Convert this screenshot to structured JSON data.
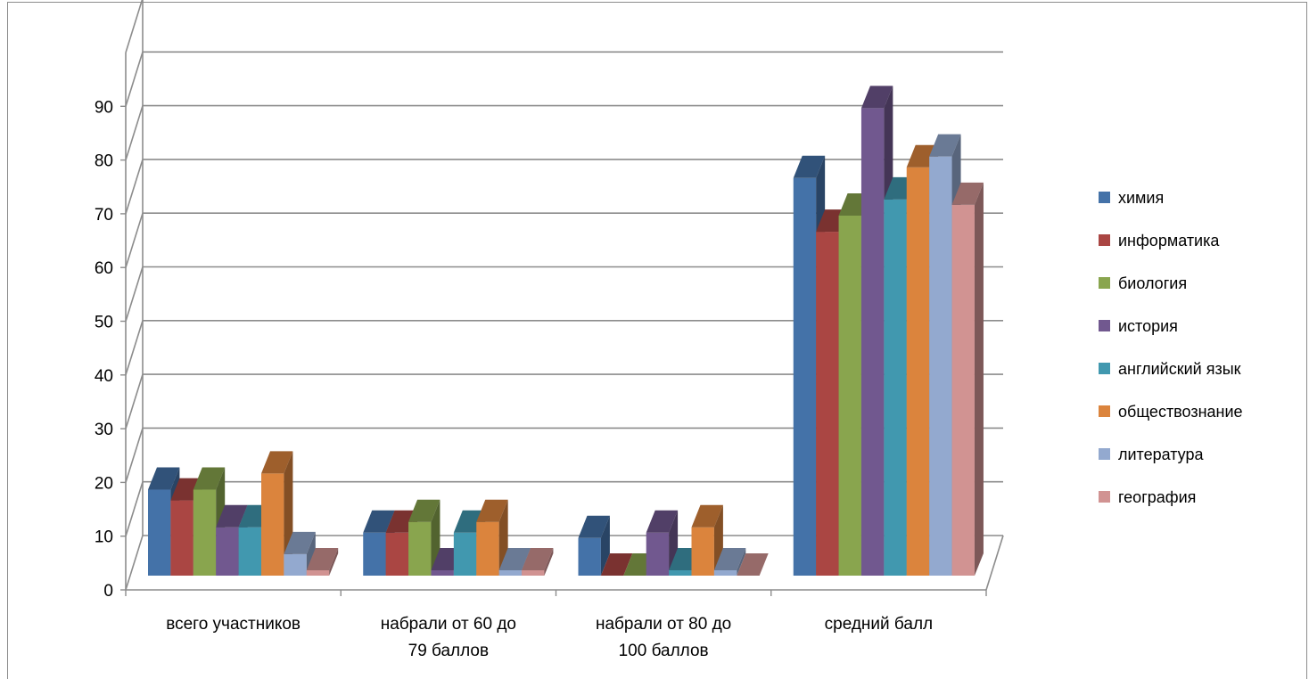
{
  "chart_data": {
    "type": "bar",
    "title": "",
    "xlabel": "",
    "ylabel": "",
    "ylim": [
      0,
      90
    ],
    "yticks": [
      0,
      10,
      20,
      30,
      40,
      50,
      60,
      70,
      80,
      90
    ],
    "grid": true,
    "three_d": true,
    "legend_position": "right",
    "categories": [
      [
        "всего участников"
      ],
      [
        "набрали от 60 до",
        "79 баллов"
      ],
      [
        "набрали от 80 до",
        "100 баллов"
      ],
      [
        "средний балл"
      ]
    ],
    "series": [
      {
        "name": "химия",
        "color": "#4472A8",
        "values": [
          16,
          8,
          7,
          74
        ]
      },
      {
        "name": "информатика",
        "color": "#AA4643",
        "values": [
          14,
          8,
          0,
          64
        ]
      },
      {
        "name": "биология",
        "color": "#89A54E",
        "values": [
          16,
          10,
          0,
          67
        ]
      },
      {
        "name": "история",
        "color": "#71588F",
        "values": [
          9,
          1,
          8,
          87
        ]
      },
      {
        "name": "английский язык",
        "color": "#4198AF",
        "values": [
          9,
          8,
          1,
          70
        ]
      },
      {
        "name": "обществознание",
        "color": "#DB843D",
        "values": [
          19,
          10,
          9,
          76
        ]
      },
      {
        "name": "литература",
        "color": "#93A9CF",
        "values": [
          4,
          1,
          1,
          78
        ]
      },
      {
        "name": "география",
        "color": "#D19392",
        "values": [
          1,
          1,
          0,
          69
        ]
      }
    ]
  }
}
